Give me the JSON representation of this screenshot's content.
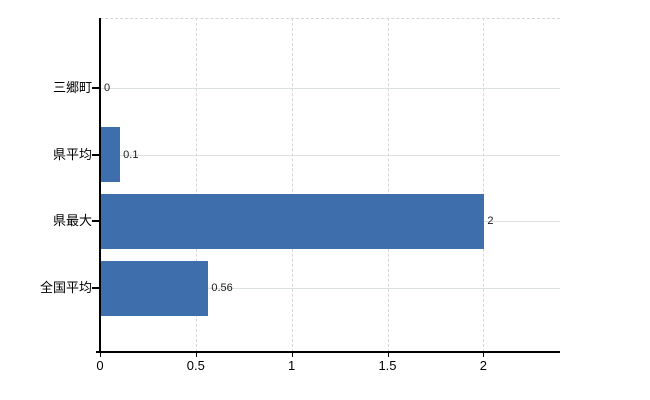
{
  "chart_data": {
    "type": "bar",
    "orientation": "horizontal",
    "title": "",
    "xlabel": "",
    "ylabel": "",
    "categories": [
      "三郷町",
      "県平均",
      "県最大",
      "全国平均"
    ],
    "values": [
      0,
      0.1,
      2,
      0.56
    ],
    "value_labels": [
      "0",
      "0.1",
      "2",
      "0.56"
    ],
    "xlim": [
      0,
      2.4
    ],
    "xticks": [
      0,
      0.5,
      1,
      1.5,
      2
    ],
    "xtick_labels": [
      "0",
      "0.5",
      "1",
      "1.5",
      "2"
    ],
    "grid": {
      "horizontal": "solid",
      "vertical": "dashed",
      "top_border": "dashed"
    },
    "legend_position": "none",
    "colors": {
      "bar": "#3e6eab",
      "horizontal_grid": "#dbe2db",
      "vertical_grid": "#d6d6d6",
      "axis": "#000000",
      "text": "#000000"
    }
  }
}
